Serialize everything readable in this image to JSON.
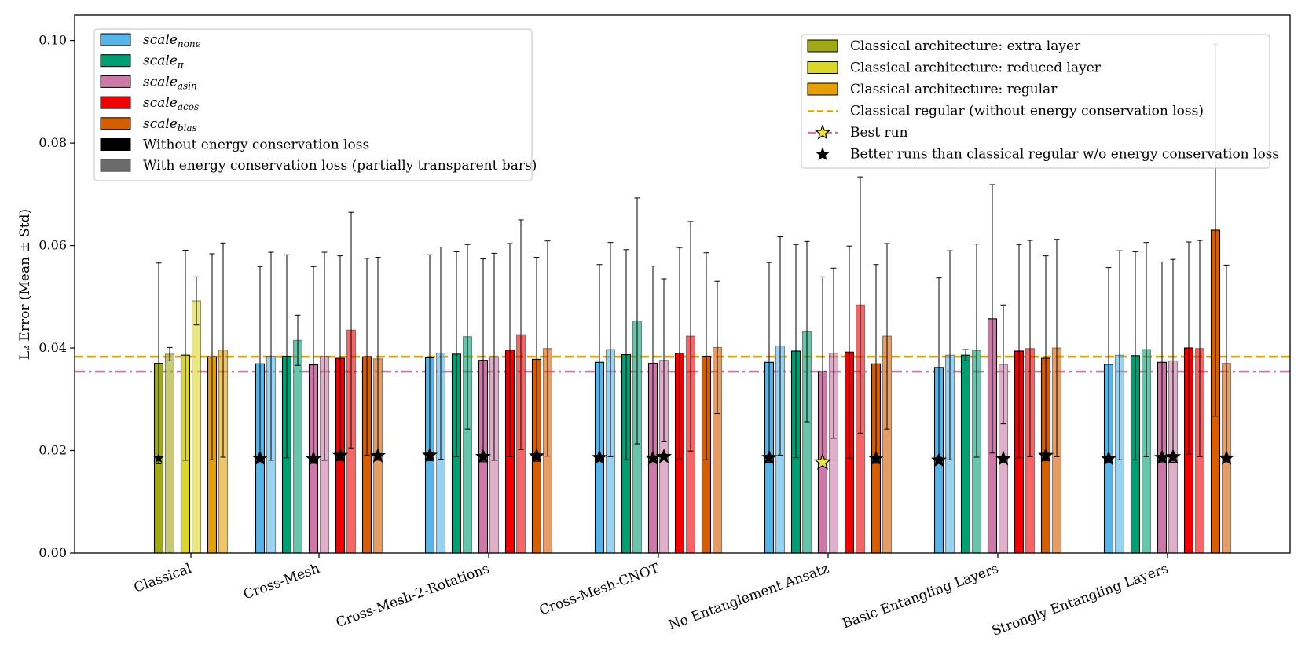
{
  "chart_data": {
    "type": "bar",
    "ylabel": "L₂ Error (Mean ± Std)",
    "ylim": [
      0,
      0.105
    ],
    "yticks": [
      "0.00",
      "0.02",
      "0.04",
      "0.06",
      "0.08",
      "0.10"
    ],
    "categories": [
      "Classical",
      "Cross-Mesh",
      "Cross-Mesh-2-Rotations",
      "Cross-Mesh-CNOT",
      "No Entanglement Ansatz",
      "Basic Entangling Layers",
      "Strongly Entangling Layers"
    ],
    "colors": {
      "none": "#56b4e9",
      "pi": "#009e73",
      "asin": "#cc79a7",
      "acos": "#f00000",
      "bias": "#d55e00",
      "extra": "#a0a814",
      "reduced": "#dcd62c",
      "regular": "#e69f00",
      "best_line": "#cc79a7",
      "regular_line": "#e69f00",
      "best_star": "#f0e442"
    },
    "groups": [
      {
        "category": "Classical",
        "bars": [
          {
            "series": "extra",
            "loss": "without",
            "value": 0.037,
            "std": 0.0196,
            "marker": "star_small"
          },
          {
            "series": "extra",
            "loss": "with",
            "value": 0.0388,
            "std": 0.0013,
            "marker": null
          },
          {
            "series": "reduced",
            "loss": "without",
            "value": 0.0386,
            "std": 0.0205,
            "marker": null
          },
          {
            "series": "reduced",
            "loss": "with",
            "value": 0.0492,
            "std": 0.0047,
            "marker": null
          },
          {
            "series": "regular",
            "loss": "without",
            "value": 0.0383,
            "std": 0.0201,
            "marker": null
          },
          {
            "series": "regular",
            "loss": "with",
            "value": 0.0396,
            "std": 0.0209,
            "marker": null
          }
        ]
      },
      {
        "category": "Cross-Mesh",
        "bars": [
          {
            "series": "none",
            "loss": "without",
            "value": 0.0369,
            "std": 0.019,
            "marker": "star"
          },
          {
            "series": "none",
            "loss": "with",
            "value": 0.0384,
            "std": 0.0203,
            "marker": null
          },
          {
            "series": "pi",
            "loss": "without",
            "value": 0.0384,
            "std": 0.0198,
            "marker": null
          },
          {
            "series": "pi",
            "loss": "with",
            "value": 0.0415,
            "std": 0.0049,
            "marker": null
          },
          {
            "series": "asin",
            "loss": "without",
            "value": 0.0367,
            "std": 0.0192,
            "marker": "star"
          },
          {
            "series": "asin",
            "loss": "with",
            "value": 0.0384,
            "std": 0.0203,
            "marker": null
          },
          {
            "series": "acos",
            "loss": "without",
            "value": 0.038,
            "std": 0.02,
            "marker": "star"
          },
          {
            "series": "acos",
            "loss": "with",
            "value": 0.0435,
            "std": 0.023,
            "marker": null
          },
          {
            "series": "bias",
            "loss": "without",
            "value": 0.0383,
            "std": 0.0192,
            "marker": null
          },
          {
            "series": "bias",
            "loss": "with",
            "value": 0.0379,
            "std": 0.0198,
            "marker": "star"
          }
        ]
      },
      {
        "category": "Cross-Mesh-2-Rotations",
        "bars": [
          {
            "series": "none",
            "loss": "without",
            "value": 0.0381,
            "std": 0.0201,
            "marker": "star"
          },
          {
            "series": "none",
            "loss": "with",
            "value": 0.039,
            "std": 0.0207,
            "marker": null
          },
          {
            "series": "pi",
            "loss": "without",
            "value": 0.0388,
            "std": 0.02,
            "marker": null
          },
          {
            "series": "pi",
            "loss": "with",
            "value": 0.0422,
            "std": 0.018,
            "marker": null
          },
          {
            "series": "asin",
            "loss": "without",
            "value": 0.0376,
            "std": 0.0198,
            "marker": "star"
          },
          {
            "series": "asin",
            "loss": "with",
            "value": 0.0383,
            "std": 0.0202,
            "marker": null
          },
          {
            "series": "acos",
            "loss": "without",
            "value": 0.0396,
            "std": 0.0208,
            "marker": null
          },
          {
            "series": "acos",
            "loss": "with",
            "value": 0.0426,
            "std": 0.0224,
            "marker": null
          },
          {
            "series": "bias",
            "loss": "without",
            "value": 0.0378,
            "std": 0.0199,
            "marker": "star"
          },
          {
            "series": "bias",
            "loss": "with",
            "value": 0.0399,
            "std": 0.021,
            "marker": null
          }
        ]
      },
      {
        "category": "Cross-Mesh-CNOT",
        "bars": [
          {
            "series": "none",
            "loss": "without",
            "value": 0.0372,
            "std": 0.0191,
            "marker": "star"
          },
          {
            "series": "none",
            "loss": "with",
            "value": 0.0397,
            "std": 0.0209,
            "marker": null
          },
          {
            "series": "pi",
            "loss": "without",
            "value": 0.0387,
            "std": 0.0205,
            "marker": null
          },
          {
            "series": "pi",
            "loss": "with",
            "value": 0.0453,
            "std": 0.024,
            "marker": null
          },
          {
            "series": "asin",
            "loss": "without",
            "value": 0.037,
            "std": 0.019,
            "marker": "star"
          },
          {
            "series": "asin",
            "loss": "with",
            "value": 0.0376,
            "std": 0.0159,
            "marker": "star"
          },
          {
            "series": "acos",
            "loss": "without",
            "value": 0.039,
            "std": 0.0206,
            "marker": null
          },
          {
            "series": "acos",
            "loss": "with",
            "value": 0.0423,
            "std": 0.0224,
            "marker": null
          },
          {
            "series": "bias",
            "loss": "without",
            "value": 0.0384,
            "std": 0.0202,
            "marker": null
          },
          {
            "series": "bias",
            "loss": "with",
            "value": 0.0401,
            "std": 0.0129,
            "marker": null
          }
        ]
      },
      {
        "category": "No Entanglement Ansatz",
        "bars": [
          {
            "series": "none",
            "loss": "without",
            "value": 0.0372,
            "std": 0.0195,
            "marker": "star"
          },
          {
            "series": "none",
            "loss": "with",
            "value": 0.0404,
            "std": 0.0213,
            "marker": null
          },
          {
            "series": "pi",
            "loss": "without",
            "value": 0.0394,
            "std": 0.0208,
            "marker": null
          },
          {
            "series": "pi",
            "loss": "with",
            "value": 0.0432,
            "std": 0.0176,
            "marker": null
          },
          {
            "series": "asin",
            "loss": "without",
            "value": 0.0354,
            "std": 0.0185,
            "marker": "best"
          },
          {
            "series": "asin",
            "loss": "with",
            "value": 0.039,
            "std": 0.0166,
            "marker": null
          },
          {
            "series": "acos",
            "loss": "without",
            "value": 0.0392,
            "std": 0.0207,
            "marker": null
          },
          {
            "series": "acos",
            "loss": "with",
            "value": 0.0484,
            "std": 0.025,
            "marker": null
          },
          {
            "series": "bias",
            "loss": "without",
            "value": 0.0369,
            "std": 0.0194,
            "marker": "star"
          },
          {
            "series": "bias",
            "loss": "with",
            "value": 0.0423,
            "std": 0.0181,
            "marker": null
          }
        ]
      },
      {
        "category": "Basic Entangling Layers",
        "bars": [
          {
            "series": "none",
            "loss": "without",
            "value": 0.0362,
            "std": 0.0175,
            "marker": "star"
          },
          {
            "series": "none",
            "loss": "with",
            "value": 0.0386,
            "std": 0.0204,
            "marker": null
          },
          {
            "series": "pi",
            "loss": "without",
            "value": 0.0386,
            "std": 0.0011,
            "marker": null
          },
          {
            "series": "pi",
            "loss": "with",
            "value": 0.0395,
            "std": 0.0208,
            "marker": null
          },
          {
            "series": "asin",
            "loss": "without",
            "value": 0.0457,
            "std": 0.0262,
            "marker": null
          },
          {
            "series": "asin",
            "loss": "with",
            "value": 0.0368,
            "std": 0.0116,
            "marker": "star"
          },
          {
            "series": "acos",
            "loss": "without",
            "value": 0.0394,
            "std": 0.0208,
            "marker": null
          },
          {
            "series": "acos",
            "loss": "with",
            "value": 0.0399,
            "std": 0.0211,
            "marker": null
          },
          {
            "series": "bias",
            "loss": "without",
            "value": 0.038,
            "std": 0.02,
            "marker": "star"
          },
          {
            "series": "bias",
            "loss": "with",
            "value": 0.04,
            "std": 0.0212,
            "marker": null
          }
        ]
      },
      {
        "category": "Strongly Entangling Layers",
        "bars": [
          {
            "series": "none",
            "loss": "without",
            "value": 0.0368,
            "std": 0.0189,
            "marker": "star"
          },
          {
            "series": "none",
            "loss": "with",
            "value": 0.0386,
            "std": 0.0204,
            "marker": null
          },
          {
            "series": "pi",
            "loss": "without",
            "value": 0.0385,
            "std": 0.0203,
            "marker": null
          },
          {
            "series": "pi",
            "loss": "with",
            "value": 0.0397,
            "std": 0.0209,
            "marker": null
          },
          {
            "series": "asin",
            "loss": "without",
            "value": 0.0372,
            "std": 0.0196,
            "marker": "star"
          },
          {
            "series": "asin",
            "loss": "with",
            "value": 0.0375,
            "std": 0.0198,
            "marker": "star"
          },
          {
            "series": "acos",
            "loss": "without",
            "value": 0.04,
            "std": 0.0207,
            "marker": null
          },
          {
            "series": "acos",
            "loss": "with",
            "value": 0.0399,
            "std": 0.0211,
            "marker": null
          },
          {
            "series": "bias",
            "loss": "without",
            "value": 0.063,
            "std": 0.0363,
            "marker": null
          },
          {
            "series": "bias",
            "loss": "with",
            "value": 0.037,
            "std": 0.0192,
            "marker": "star"
          }
        ]
      }
    ],
    "reference_lines": [
      {
        "name": "classical-regular-line",
        "value": 0.0383,
        "style": "dashed",
        "color_key": "regular_line"
      },
      {
        "name": "best-run-line",
        "value": 0.0354,
        "style": "dashdot",
        "color_key": "best_line"
      }
    ],
    "legend_left": {
      "position": "top-left",
      "items": [
        {
          "key": "none",
          "base": "scale",
          "sub": "none",
          "swatch": "none"
        },
        {
          "key": "pi",
          "base": "scale",
          "sub": "π",
          "swatch": "pi"
        },
        {
          "key": "asin",
          "base": "scale",
          "sub": "asin",
          "swatch": "asin"
        },
        {
          "key": "acos",
          "base": "scale",
          "sub": "acos",
          "swatch": "acos"
        },
        {
          "key": "bias",
          "base": "scale",
          "sub": "bias",
          "swatch": "bias"
        },
        {
          "key": "without",
          "label": "Without energy conservation loss",
          "swatch": "black"
        },
        {
          "key": "with",
          "label": "With energy conservation loss (partially transparent bars)",
          "swatch": "gray"
        }
      ]
    },
    "legend_right": {
      "position": "top-right",
      "items": [
        {
          "label": "Classical architecture: extra layer",
          "kind": "patch",
          "color_key": "extra"
        },
        {
          "label": "Classical architecture: reduced layer",
          "kind": "patch",
          "color_key": "reduced"
        },
        {
          "label": "Classical architecture: regular",
          "kind": "patch",
          "color_key": "regular"
        },
        {
          "label": "Classical regular (without energy conservation loss)",
          "kind": "dashed",
          "color_key": "regular_line"
        },
        {
          "label": "Best run",
          "kind": "best",
          "color_key": "best_line"
        },
        {
          "label": "Better runs than classical regular w/o energy conservation loss",
          "kind": "star",
          "color_key": ""
        }
      ]
    }
  }
}
